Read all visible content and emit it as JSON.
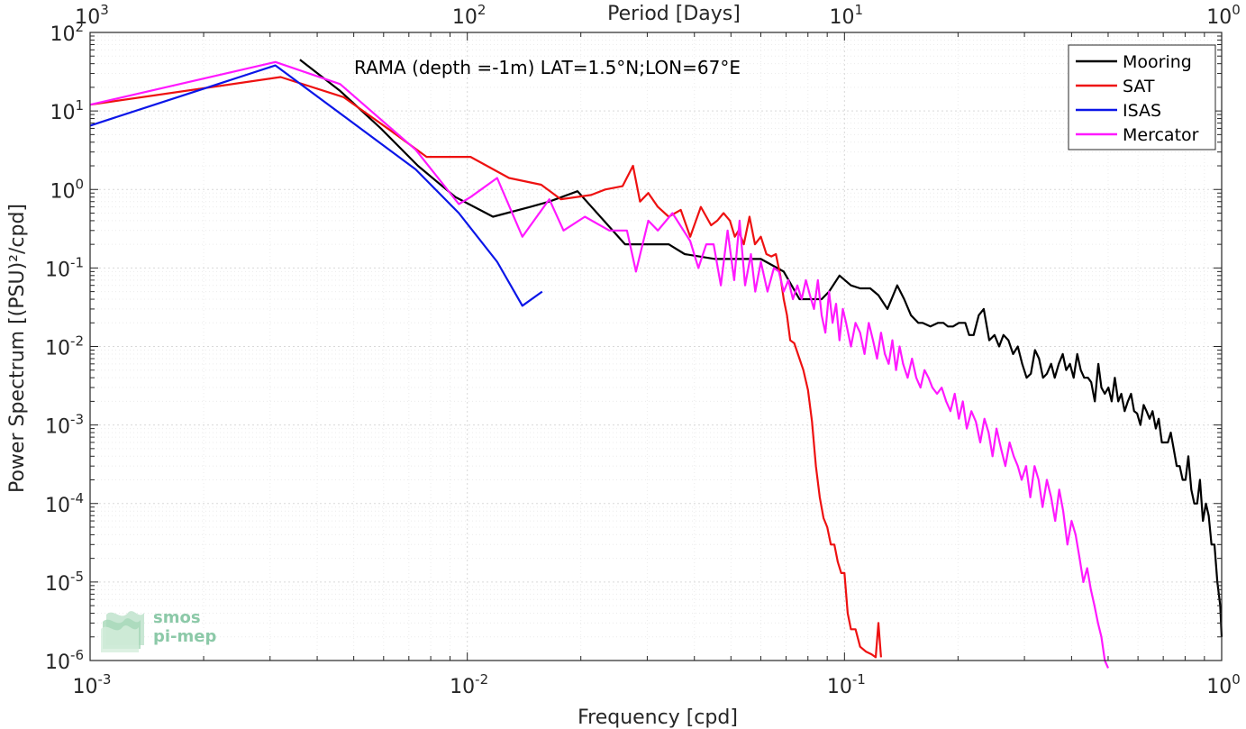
{
  "chart_data": {
    "type": "line",
    "title": "",
    "annotation": "RAMA (depth =-1m) LAT=1.5°N;LON=67°E",
    "xlabel": "Frequency [cpd]",
    "ylabel": "Power Spectrum [(PSU)²/cpd]",
    "top_xlabel": "Period [Days]",
    "xscale": "log",
    "yscale": "log",
    "xlim": [
      0.001,
      1
    ],
    "ylim": [
      1e-06,
      100
    ],
    "grid": true,
    "legend_position": "top-right",
    "x_ticks": [
      {
        "base": "10",
        "exp": "-3",
        "v": 0.001
      },
      {
        "base": "10",
        "exp": "-2",
        "v": 0.01
      },
      {
        "base": "10",
        "exp": "-1",
        "v": 0.1
      },
      {
        "base": "10",
        "exp": "0",
        "v": 1
      }
    ],
    "y_ticks": [
      {
        "base": "10",
        "exp": "-6",
        "v": 1e-06
      },
      {
        "base": "10",
        "exp": "-5",
        "v": 1e-05
      },
      {
        "base": "10",
        "exp": "-4",
        "v": 0.0001
      },
      {
        "base": "10",
        "exp": "-3",
        "v": 0.001
      },
      {
        "base": "10",
        "exp": "-2",
        "v": 0.01
      },
      {
        "base": "10",
        "exp": "-1",
        "v": 0.1
      },
      {
        "base": "10",
        "exp": "0",
        "v": 1
      },
      {
        "base": "10",
        "exp": "1",
        "v": 10
      },
      {
        "base": "10",
        "exp": "2",
        "v": 100
      }
    ],
    "top_ticks": [
      {
        "base": "10",
        "exp": "3",
        "v": 0.001
      },
      {
        "base": "10",
        "exp": "2",
        "v": 0.01
      },
      {
        "base": "10",
        "exp": "1",
        "v": 0.1
      },
      {
        "base": "10",
        "exp": "0",
        "v": 1
      }
    ],
    "series": [
      {
        "name": "Mooring",
        "color": "#000000",
        "x": [
          0.0036,
          0.0046,
          0.0059,
          0.0074,
          0.0093,
          0.0117,
          0.0147,
          0.0165,
          0.0196,
          0.0262,
          0.0342,
          0.0377,
          0.0454,
          0.052,
          0.06,
          0.069,
          0.076,
          0.087,
          0.091,
          0.097,
          0.104,
          0.11,
          0.117,
          0.123,
          0.13,
          0.138,
          0.144,
          0.15,
          0.157,
          0.161,
          0.169,
          0.177,
          0.183,
          0.188,
          0.194,
          0.201,
          0.209,
          0.214,
          0.22,
          0.227,
          0.234,
          0.242,
          0.25,
          0.257,
          0.264,
          0.272,
          0.28,
          0.288,
          0.296,
          0.304,
          0.312,
          0.32,
          0.328,
          0.336,
          0.344,
          0.353,
          0.361,
          0.37,
          0.379,
          0.387,
          0.396,
          0.405,
          0.414,
          0.423,
          0.432,
          0.442,
          0.451,
          0.461,
          0.471,
          0.48,
          0.49,
          0.501,
          0.511,
          0.521,
          0.532,
          0.542,
          0.553,
          0.564,
          0.575,
          0.586,
          0.597,
          0.609,
          0.621,
          0.632,
          0.644,
          0.656,
          0.669,
          0.681,
          0.694,
          0.707,
          0.72,
          0.733,
          0.746,
          0.76,
          0.774,
          0.788,
          0.802,
          0.816,
          0.831,
          0.846,
          0.861,
          0.876,
          0.892,
          0.908,
          0.924,
          0.94,
          0.957,
          0.974,
          0.991,
          1.0
        ],
        "y": [
          45,
          18,
          6,
          2,
          0.8,
          0.45,
          0.6,
          0.7,
          0.95,
          0.2,
          0.2,
          0.15,
          0.13,
          0.13,
          0.13,
          0.09,
          0.04,
          0.04,
          0.05,
          0.08,
          0.06,
          0.055,
          0.055,
          0.045,
          0.03,
          0.06,
          0.04,
          0.025,
          0.02,
          0.02,
          0.018,
          0.02,
          0.02,
          0.018,
          0.018,
          0.02,
          0.02,
          0.014,
          0.014,
          0.025,
          0.03,
          0.012,
          0.014,
          0.01,
          0.014,
          0.012,
          0.008,
          0.01,
          0.006,
          0.004,
          0.0045,
          0.009,
          0.007,
          0.004,
          0.0045,
          0.006,
          0.004,
          0.006,
          0.008,
          0.005,
          0.006,
          0.004,
          0.008,
          0.005,
          0.004,
          0.004,
          0.0035,
          0.002,
          0.006,
          0.003,
          0.0025,
          0.003,
          0.002,
          0.004,
          0.002,
          0.0025,
          0.0015,
          0.002,
          0.0025,
          0.0015,
          0.0014,
          0.001,
          0.0018,
          0.0015,
          0.0012,
          0.0015,
          0.0009,
          0.0012,
          0.0006,
          0.0006,
          0.0006,
          0.0008,
          0.0005,
          0.0003,
          0.0003,
          0.0002,
          0.0002,
          0.0004,
          0.00015,
          0.0001,
          0.0001,
          0.0002,
          6e-05,
          0.0001,
          7e-05,
          3e-05,
          3e-05,
          1e-05,
          5e-06,
          2e-06
        ]
      },
      {
        "name": "SAT",
        "color": "#ee1111",
        "x": [
          0.001,
          0.0032,
          0.0047,
          0.0063,
          0.0078,
          0.0102,
          0.0129,
          0.0157,
          0.0177,
          0.0213,
          0.0232,
          0.0258,
          0.0275,
          0.0287,
          0.0302,
          0.032,
          0.0342,
          0.0368,
          0.039,
          0.0416,
          0.0443,
          0.046,
          0.0478,
          0.0497,
          0.0512,
          0.0524,
          0.0541,
          0.056,
          0.0579,
          0.06,
          0.0621,
          0.064,
          0.0658,
          0.0676,
          0.069,
          0.0704,
          0.0718,
          0.0736,
          0.0756,
          0.0778,
          0.08,
          0.082,
          0.084,
          0.086,
          0.088,
          0.09,
          0.092,
          0.094,
          0.096,
          0.098,
          0.1,
          0.102,
          0.104,
          0.107,
          0.11,
          0.114,
          0.118,
          0.121,
          0.123,
          0.125
        ],
        "y": [
          12,
          27,
          15,
          5.5,
          2.6,
          2.6,
          1.4,
          1.15,
          0.75,
          0.85,
          1.0,
          1.1,
          2.0,
          0.7,
          0.9,
          0.6,
          0.45,
          0.55,
          0.25,
          0.6,
          0.35,
          0.4,
          0.5,
          0.4,
          0.25,
          0.3,
          0.2,
          0.45,
          0.2,
          0.25,
          0.15,
          0.14,
          0.15,
          0.08,
          0.04,
          0.025,
          0.012,
          0.011,
          0.0075,
          0.005,
          0.0028,
          0.0011,
          0.0003,
          0.00012,
          6.5e-05,
          5e-05,
          3e-05,
          3e-05,
          1.8e-05,
          1.3e-05,
          1.3e-05,
          4e-06,
          2.5e-06,
          2.5e-06,
          1.5e-06,
          1.3e-06,
          1.2e-06,
          1.1e-06,
          3e-06,
          1.1e-06
        ]
      },
      {
        "name": "ISAS",
        "color": "#0b16e8",
        "x": [
          0.001,
          0.0031,
          0.0073,
          0.0095,
          0.012,
          0.014,
          0.0158
        ],
        "y": [
          6.5,
          38,
          1.8,
          0.5,
          0.12,
          0.033,
          0.05
        ]
      },
      {
        "name": "Mercator",
        "color": "#ff19ff",
        "x": [
          0.001,
          0.0031,
          0.0046,
          0.0073,
          0.0095,
          0.0102,
          0.012,
          0.014,
          0.0165,
          0.018,
          0.0205,
          0.0238,
          0.0265,
          0.028,
          0.0302,
          0.032,
          0.035,
          0.039,
          0.041,
          0.043,
          0.045,
          0.047,
          0.049,
          0.051,
          0.0527,
          0.0545,
          0.0565,
          0.058,
          0.06,
          0.0625,
          0.065,
          0.067,
          0.069,
          0.071,
          0.073,
          0.075,
          0.077,
          0.079,
          0.081,
          0.083,
          0.085,
          0.087,
          0.089,
          0.091,
          0.093,
          0.095,
          0.097,
          0.099,
          0.101,
          0.104,
          0.107,
          0.11,
          0.113,
          0.116,
          0.119,
          0.122,
          0.125,
          0.128,
          0.131,
          0.134,
          0.137,
          0.14,
          0.143,
          0.147,
          0.151,
          0.155,
          0.159,
          0.163,
          0.167,
          0.171,
          0.176,
          0.181,
          0.186,
          0.191,
          0.196,
          0.201,
          0.206,
          0.211,
          0.217,
          0.223,
          0.229,
          0.235,
          0.241,
          0.247,
          0.253,
          0.26,
          0.267,
          0.274,
          0.281,
          0.288,
          0.295,
          0.303,
          0.311,
          0.319,
          0.327,
          0.335,
          0.344,
          0.353,
          0.362,
          0.371,
          0.38,
          0.39,
          0.4,
          0.41,
          0.42,
          0.43,
          0.44,
          0.45,
          0.46,
          0.47,
          0.48,
          0.49,
          0.5
        ],
        "y": [
          12,
          42,
          22,
          3.2,
          0.65,
          0.8,
          1.4,
          0.25,
          0.75,
          0.3,
          0.45,
          0.3,
          0.3,
          0.09,
          0.4,
          0.3,
          0.5,
          0.22,
          0.1,
          0.2,
          0.2,
          0.06,
          0.3,
          0.07,
          0.4,
          0.06,
          0.15,
          0.05,
          0.12,
          0.05,
          0.1,
          0.09,
          0.05,
          0.07,
          0.04,
          0.06,
          0.04,
          0.07,
          0.045,
          0.03,
          0.07,
          0.025,
          0.015,
          0.05,
          0.02,
          0.035,
          0.012,
          0.03,
          0.02,
          0.01,
          0.02,
          0.015,
          0.008,
          0.02,
          0.012,
          0.007,
          0.015,
          0.008,
          0.006,
          0.012,
          0.005,
          0.01,
          0.006,
          0.004,
          0.007,
          0.004,
          0.003,
          0.005,
          0.004,
          0.003,
          0.0025,
          0.003,
          0.002,
          0.0015,
          0.0025,
          0.0012,
          0.002,
          0.0009,
          0.0015,
          0.0011,
          0.0006,
          0.0012,
          0.0008,
          0.0004,
          0.0009,
          0.0005,
          0.0003,
          0.0006,
          0.0004,
          0.0003,
          0.0002,
          0.0003,
          0.00012,
          0.0003,
          0.0002,
          9e-05,
          0.0002,
          0.00012,
          6e-05,
          0.00015,
          8e-05,
          3e-05,
          6e-05,
          4e-05,
          2e-05,
          1e-05,
          1.5e-05,
          8e-06,
          5e-06,
          3e-06,
          2e-06,
          1e-06,
          8e-07
        ]
      }
    ]
  },
  "logo": {
    "line1": "smos",
    "line2": "pi-mep"
  }
}
